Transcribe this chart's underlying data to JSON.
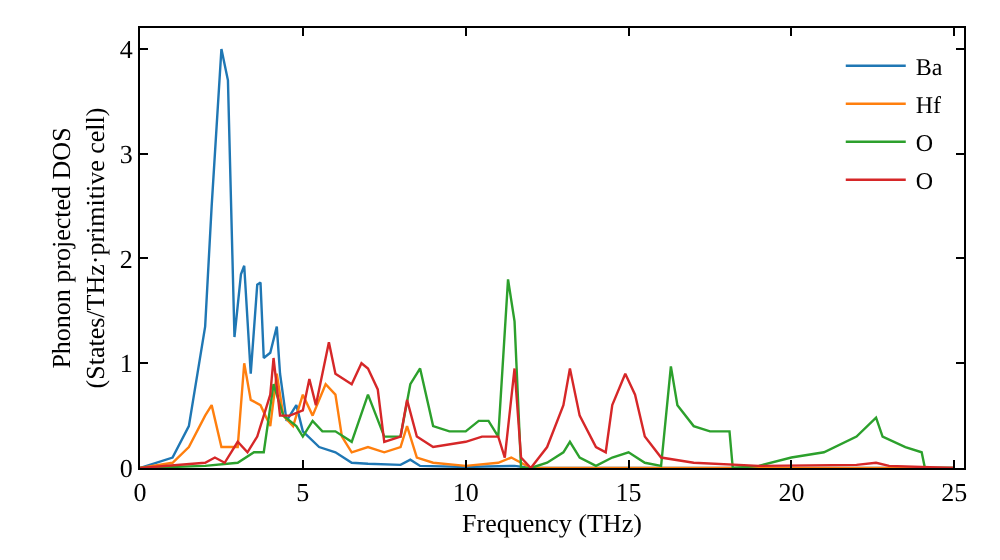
{
  "chart_data": {
    "type": "line",
    "xlabel": "Frequency (THz)",
    "ylabel": "Phonon projected DOS\n(States/THz·primitive cell)",
    "xlim": [
      0,
      25.3
    ],
    "ylim": [
      0,
      4.2
    ],
    "xticks": [
      0,
      5,
      10,
      15,
      20,
      25
    ],
    "yticks": [
      0,
      1,
      2,
      3,
      4
    ],
    "legend": "top right",
    "marker": "none",
    "line_style": "solid",
    "series": [
      {
        "name": "Ba",
        "color": "#1f77b4",
        "x": [
          0,
          1,
          1.5,
          2,
          2.2,
          2.5,
          2.7,
          2.9,
          3.1,
          3.2,
          3.4,
          3.6,
          3.7,
          3.8,
          4.0,
          4.2,
          4.3,
          4.5,
          4.8,
          5.0,
          5.5,
          6.0,
          6.5,
          7,
          8,
          8.3,
          8.6,
          10,
          11.5,
          12,
          25
        ],
        "values": [
          0,
          0.1,
          0.4,
          1.35,
          2.5,
          4.0,
          3.7,
          1.25,
          1.85,
          1.93,
          0.9,
          1.75,
          1.77,
          1.05,
          1.1,
          1.35,
          0.9,
          0.45,
          0.6,
          0.35,
          0.2,
          0.15,
          0.05,
          0.04,
          0.03,
          0.08,
          0.02,
          0.01,
          0.02,
          0,
          0
        ]
      },
      {
        "name": "Hf",
        "color": "#ff7f0e",
        "x": [
          0,
          1,
          1.5,
          2,
          2.2,
          2.5,
          3,
          3.2,
          3.4,
          3.7,
          4.0,
          4.2,
          4.4,
          4.7,
          5.0,
          5.3,
          5.7,
          6.0,
          6.2,
          6.5,
          7,
          7.5,
          8.0,
          8.2,
          8.5,
          9,
          10,
          11,
          11.4,
          11.7,
          12,
          25
        ],
        "values": [
          0,
          0.05,
          0.2,
          0.5,
          0.6,
          0.2,
          0.2,
          1.0,
          0.65,
          0.6,
          0.4,
          0.9,
          0.5,
          0.4,
          0.7,
          0.5,
          0.8,
          0.7,
          0.3,
          0.15,
          0.2,
          0.15,
          0.2,
          0.4,
          0.1,
          0.05,
          0.02,
          0.05,
          0.1,
          0.05,
          0,
          0
        ]
      },
      {
        "name": "O",
        "color": "#2ca02c",
        "x": [
          0,
          2,
          3,
          3.5,
          3.8,
          4.1,
          4.4,
          4.8,
          5.0,
          5.3,
          5.6,
          6.0,
          6.5,
          7,
          7.5,
          8,
          8.3,
          8.6,
          9.0,
          9.5,
          10,
          10.4,
          10.7,
          11,
          11.3,
          11.5,
          11.7,
          12.0,
          12.5,
          13.0,
          13.2,
          13.5,
          14,
          14.5,
          15,
          15.5,
          16,
          16.3,
          16.5,
          17,
          17.5,
          18.1,
          18.2,
          19,
          20,
          21,
          22,
          22.6,
          22.8,
          23.5,
          24,
          24.1,
          25
        ],
        "values": [
          0,
          0.02,
          0.05,
          0.15,
          0.15,
          0.8,
          0.5,
          0.4,
          0.3,
          0.45,
          0.35,
          0.35,
          0.25,
          0.7,
          0.3,
          0.3,
          0.8,
          0.95,
          0.4,
          0.35,
          0.35,
          0.45,
          0.45,
          0.3,
          1.8,
          1.4,
          0,
          0,
          0.05,
          0.15,
          0.25,
          0.1,
          0.02,
          0.1,
          0.15,
          0.05,
          0.02,
          0.97,
          0.6,
          0.4,
          0.35,
          0.35,
          0,
          0.02,
          0.1,
          0.15,
          0.3,
          0.48,
          0.3,
          0.2,
          0.15,
          0,
          0
        ]
      },
      {
        "name": "O",
        "color": "#d62728",
        "x": [
          0,
          2,
          2.3,
          2.6,
          3,
          3.3,
          3.6,
          4.0,
          4.1,
          4.3,
          4.6,
          5.0,
          5.2,
          5.4,
          5.8,
          6.0,
          6.5,
          6.8,
          7.0,
          7.3,
          7.5,
          8.0,
          8.2,
          8.5,
          9,
          10,
          10.5,
          11,
          11.2,
          11.5,
          11.7,
          12,
          12.5,
          13,
          13.2,
          13.5,
          14,
          14.3,
          14.5,
          14.9,
          15.2,
          15.5,
          16,
          17,
          19,
          22,
          22.6,
          23,
          25
        ],
        "values": [
          0,
          0.05,
          0.1,
          0.05,
          0.25,
          0.15,
          0.3,
          0.7,
          1.05,
          0.5,
          0.5,
          0.55,
          0.85,
          0.6,
          1.2,
          0.9,
          0.8,
          1.0,
          0.95,
          0.75,
          0.25,
          0.3,
          0.65,
          0.3,
          0.2,
          0.25,
          0.3,
          0.3,
          0.1,
          0.95,
          0.1,
          0,
          0.2,
          0.6,
          0.95,
          0.5,
          0.2,
          0.15,
          0.6,
          0.9,
          0.7,
          0.3,
          0.1,
          0.05,
          0.02,
          0.03,
          0.05,
          0.02,
          0
        ]
      }
    ]
  }
}
